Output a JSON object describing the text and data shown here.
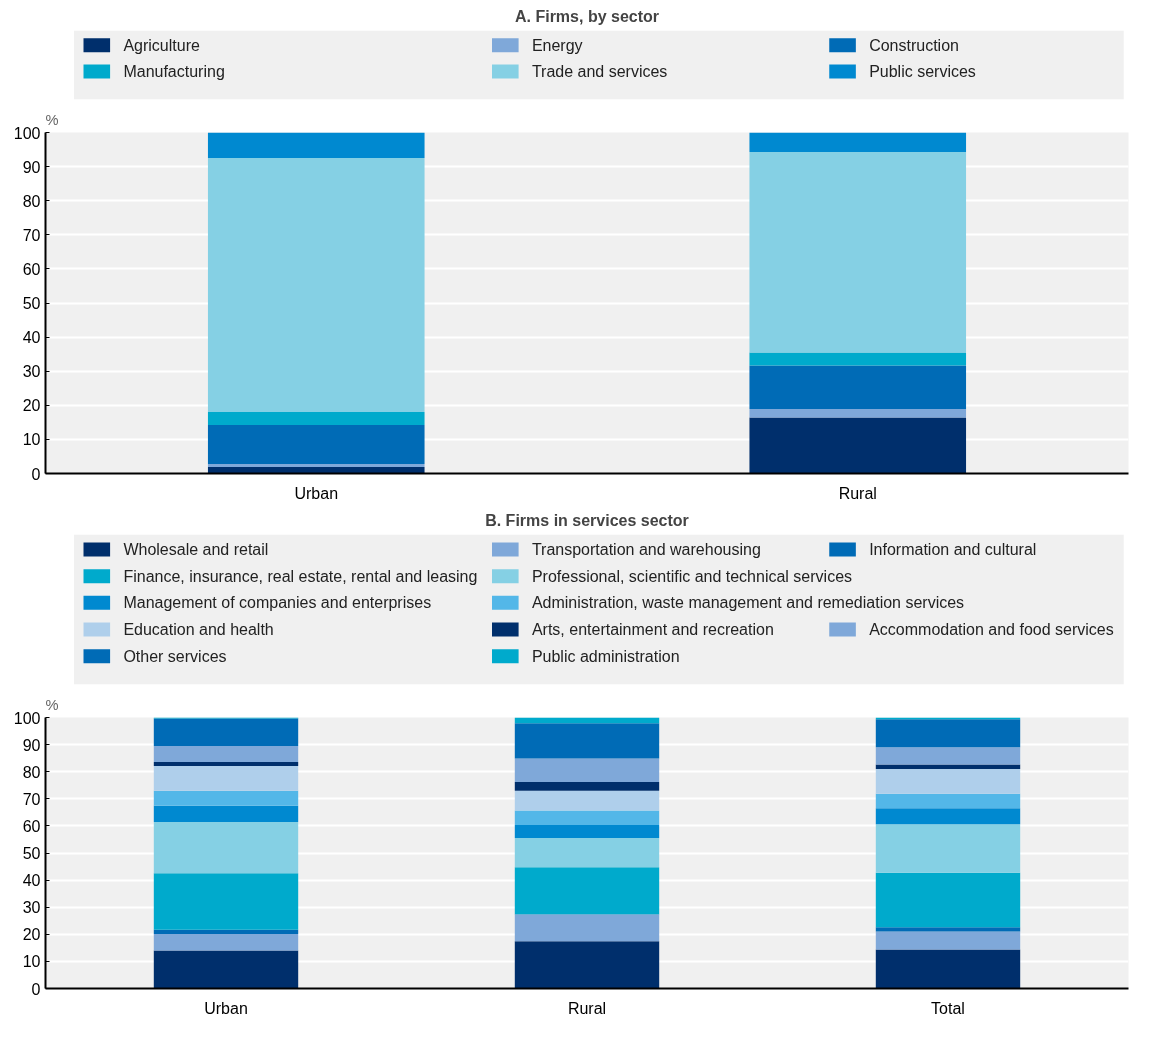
{
  "chart_data": [
    {
      "type": "bar",
      "title": "A. Firms, by sector",
      "ylabel": "%",
      "stacked": true,
      "legend": "top",
      "grid": "y",
      "categories": [
        "Urban",
        "Rural"
      ],
      "ylim": [
        0,
        100
      ],
      "yticks": [
        0,
        10,
        20,
        30,
        40,
        50,
        60,
        70,
        80,
        90,
        100
      ],
      "series": [
        {
          "name": "Agriculture",
          "color": "#002f6c",
          "values": [
            1.9,
            16.4
          ]
        },
        {
          "name": "Energy",
          "color": "#7fa8d9",
          "values": [
            0.9,
            2.5
          ]
        },
        {
          "name": "Construction",
          "color": "#006bb6",
          "values": [
            11.4,
            12.8
          ]
        },
        {
          "name": "Manufacturing",
          "color": "#00aacc",
          "values": [
            3.8,
            3.8
          ]
        },
        {
          "name": "Trade and services",
          "color": "#85d0e4",
          "values": [
            74.5,
            58.8
          ]
        },
        {
          "name": "Public services",
          "color": "#0089d0",
          "values": [
            7.5,
            5.7
          ]
        }
      ]
    },
    {
      "type": "bar",
      "title": "B. Firms in services sector",
      "ylabel": "%",
      "stacked": true,
      "legend": "top",
      "grid": "y",
      "categories": [
        "Urban",
        "Rural",
        "Total"
      ],
      "ylim": [
        0,
        100
      ],
      "yticks": [
        0,
        10,
        20,
        30,
        40,
        50,
        60,
        70,
        80,
        90,
        100
      ],
      "series": [
        {
          "name": "Wholesale and retail",
          "color": "#002f6c",
          "values": [
            14.0,
            17.4,
            14.4
          ]
        },
        {
          "name": "Transportation and warehousing",
          "color": "#7fa8d9",
          "values": [
            6.1,
            9.9,
            6.6
          ]
        },
        {
          "name": "Information and cultural",
          "color": "#006bb6",
          "values": [
            1.6,
            0.1,
            1.6
          ]
        },
        {
          "name": "Finance, insurance, real estate, rental and leasing",
          "color": "#00aacc",
          "values": [
            20.8,
            17.3,
            20.1
          ]
        },
        {
          "name": "Professional, scientific and technical services",
          "color": "#85d0e4",
          "values": [
            18.9,
            10.8,
            17.9
          ]
        },
        {
          "name": "Management of companies and enterprises",
          "color": "#0089d0",
          "values": [
            6.0,
            4.8,
            5.9
          ]
        },
        {
          "name": "Administration, waste management and remediation services",
          "color": "#53b7e8",
          "values": [
            5.6,
            5.4,
            5.4
          ]
        },
        {
          "name": "Education and health",
          "color": "#afcfeb",
          "values": [
            9.1,
            7.3,
            9.1
          ]
        },
        {
          "name": "Arts, entertainment and recreation",
          "color": "#002f6c",
          "values": [
            1.5,
            3.2,
            1.7
          ]
        },
        {
          "name": "Accommodation and food services",
          "color": "#7fa8d9",
          "values": [
            5.9,
            8.7,
            6.3
          ]
        },
        {
          "name": "Other services",
          "color": "#006bb6",
          "values": [
            10.1,
            13.0,
            10.4
          ]
        },
        {
          "name": "Public administration",
          "color": "#00aacc",
          "values": [
            0.4,
            2.1,
            0.6
          ]
        }
      ]
    }
  ]
}
